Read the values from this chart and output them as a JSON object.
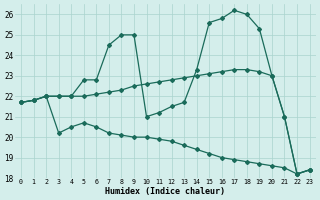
{
  "xlabel": "Humidex (Indice chaleur)",
  "bg_color": "#d4eeeb",
  "grid_color": "#aad4ce",
  "line_color": "#1a6b5a",
  "xlim": [
    -0.5,
    23.5
  ],
  "ylim": [
    18,
    26.5
  ],
  "yticks": [
    18,
    19,
    20,
    21,
    22,
    23,
    24,
    25,
    26
  ],
  "xticks": [
    0,
    1,
    2,
    3,
    4,
    5,
    6,
    7,
    8,
    9,
    10,
    11,
    12,
    13,
    14,
    15,
    16,
    17,
    18,
    19,
    20,
    21,
    22,
    23
  ],
  "line1_x": [
    0,
    1,
    2,
    3,
    4,
    5,
    6,
    7,
    8,
    9,
    10,
    11,
    12,
    13,
    14,
    15,
    16,
    17,
    18,
    19,
    20,
    21,
    22,
    23
  ],
  "line1_y": [
    21.7,
    21.8,
    22.0,
    22.0,
    22.0,
    22.8,
    22.8,
    24.5,
    25.0,
    25.0,
    21.0,
    21.2,
    21.5,
    21.7,
    23.3,
    25.6,
    25.8,
    26.2,
    26.0,
    25.3,
    23.0,
    21.0,
    18.2,
    18.4
  ],
  "line2_x": [
    0,
    1,
    2,
    3,
    4,
    5,
    6,
    7,
    8,
    9,
    10,
    11,
    12,
    13,
    14,
    15,
    16,
    17,
    18,
    19,
    20,
    21,
    22,
    23
  ],
  "line2_y": [
    21.7,
    21.8,
    22.0,
    22.0,
    22.0,
    22.0,
    22.1,
    22.2,
    22.3,
    22.5,
    22.6,
    22.7,
    22.8,
    22.9,
    23.0,
    23.1,
    23.2,
    23.3,
    23.3,
    23.2,
    23.0,
    21.0,
    18.2,
    18.4
  ],
  "line3_x": [
    0,
    1,
    2,
    3,
    4,
    5,
    6,
    7,
    8,
    9,
    10,
    11,
    12,
    13,
    14,
    15,
    16,
    17,
    18,
    19,
    20,
    21,
    22,
    23
  ],
  "line3_y": [
    21.7,
    21.8,
    22.0,
    20.2,
    20.5,
    20.7,
    20.5,
    20.2,
    20.1,
    20.0,
    20.0,
    19.9,
    19.8,
    19.6,
    19.4,
    19.2,
    19.0,
    18.9,
    18.8,
    18.7,
    18.6,
    18.5,
    18.2,
    18.4
  ]
}
